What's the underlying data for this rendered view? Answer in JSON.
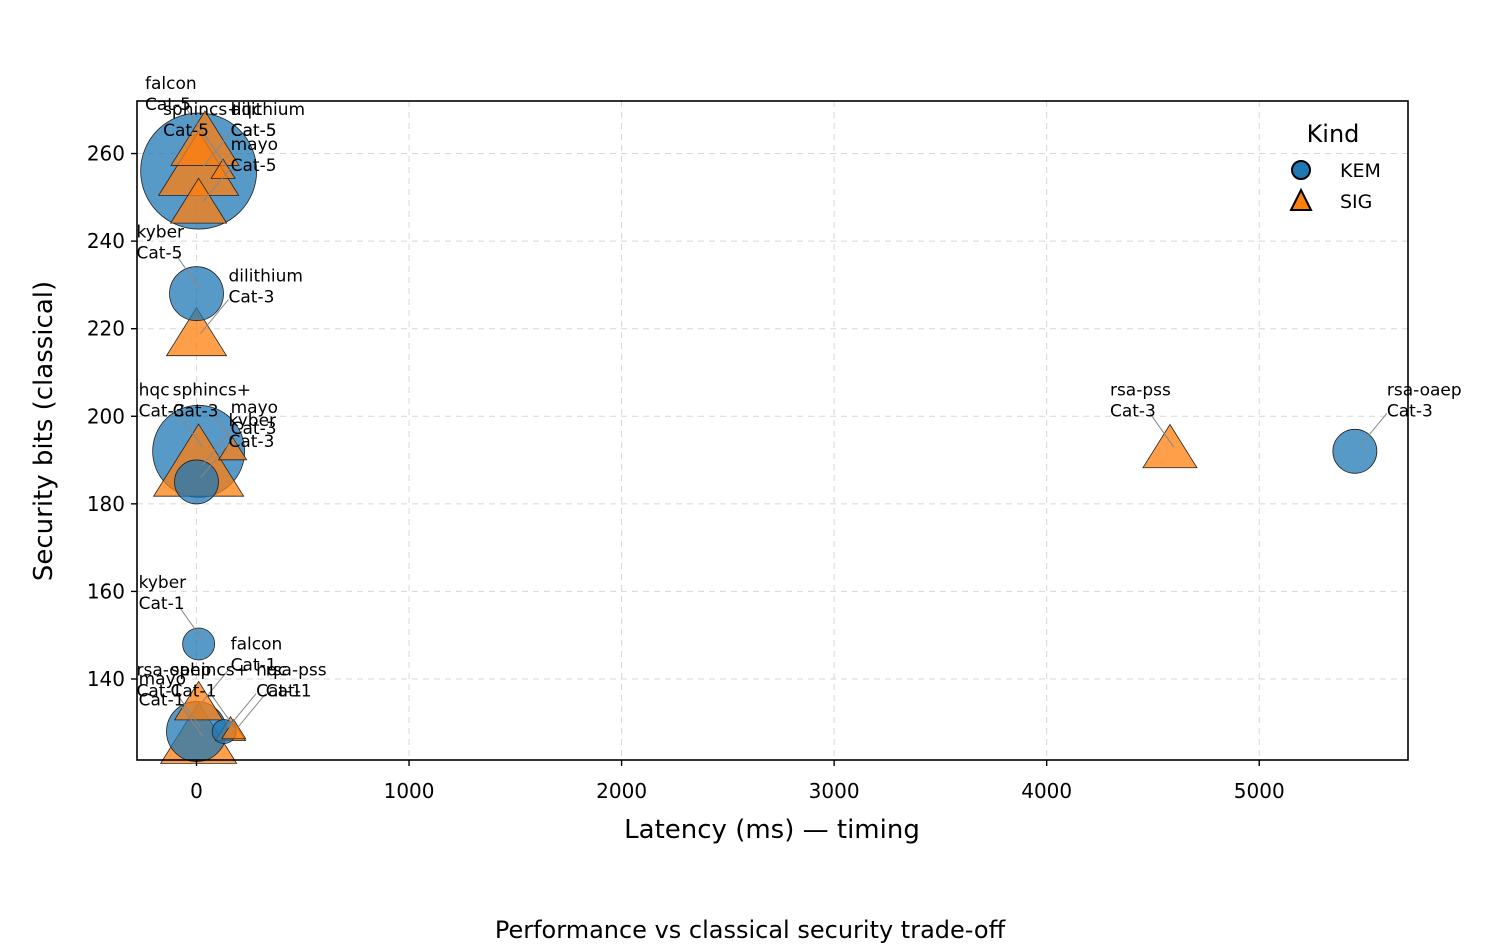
{
  "caption": "Performance vs classical security trade-off",
  "chart_data": {
    "type": "scatter",
    "title": "",
    "xlabel": "Latency (ms) — timing",
    "ylabel": "Security bits (classical)",
    "xlim": [
      -280,
      5700
    ],
    "ylim": [
      121.5,
      272
    ],
    "x_ticks": [
      0,
      1000,
      2000,
      3000,
      4000,
      5000
    ],
    "y_ticks": [
      140,
      160,
      180,
      200,
      220,
      240,
      260
    ],
    "grid": true,
    "legend": {
      "title": "Kind",
      "placement": "top-right",
      "entries": [
        "KEM",
        "SIG"
      ]
    },
    "colors": {
      "KEM": "#1f77b4",
      "SIG": "#ff7f0e"
    },
    "point_size_meaning": "not labeled",
    "points": [
      {
        "kind": "KEM",
        "name": "dilithium",
        "cat": "Cat-5",
        "x": 10,
        "y": 256,
        "size": 58
      },
      {
        "kind": "SIG",
        "name": "falcon",
        "cat": "Cat-5",
        "x": 40,
        "y": 262,
        "size": 34
      },
      {
        "kind": "SIG",
        "name": "hqc",
        "cat": "Cat-5",
        "x": 10,
        "y": 256,
        "size": 40
      },
      {
        "kind": "SIG",
        "name": "sphincs+",
        "cat": "Cat-5",
        "x": 125,
        "y": 256,
        "size": 12
      },
      {
        "kind": "SIG",
        "name": "mayo",
        "cat": "Cat-5",
        "x": 10,
        "y": 248,
        "size": 28
      },
      {
        "kind": "KEM",
        "name": "kyber",
        "cat": "Cat-5",
        "x": 0,
        "y": 228,
        "size": 27
      },
      {
        "kind": "SIG",
        "name": "dilithium",
        "cat": "Cat-3",
        "x": 0,
        "y": 218,
        "size": 30
      },
      {
        "kind": "KEM",
        "name": "hqc",
        "cat": "Cat-3",
        "x": 10,
        "y": 192,
        "size": 46
      },
      {
        "kind": "SIG",
        "name": "mayo",
        "cat": "Cat-3",
        "x": 10,
        "y": 188,
        "size": 45
      },
      {
        "kind": "SIG",
        "name": "sphincs+",
        "cat": "Cat-3",
        "x": 170,
        "y": 192,
        "size": 14
      },
      {
        "kind": "KEM",
        "name": "kyber",
        "cat": "Cat-3",
        "x": 0,
        "y": 185,
        "size": 22
      },
      {
        "kind": "SIG",
        "name": "rsa-pss",
        "cat": "Cat-3",
        "x": 4580,
        "y": 192,
        "size": 27
      },
      {
        "kind": "KEM",
        "name": "rsa-oaep",
        "cat": "Cat-3",
        "x": 5450,
        "y": 192,
        "size": 22
      },
      {
        "kind": "KEM",
        "name": "kyber",
        "cat": "Cat-1",
        "x": 10,
        "y": 148,
        "size": 16
      },
      {
        "kind": "SIG",
        "name": "falcon",
        "cat": "Cat-1",
        "x": 10,
        "y": 134,
        "size": 24
      },
      {
        "kind": "SIG",
        "name": "mayo",
        "cat": "Cat-1",
        "x": 10,
        "y": 126,
        "size": 38
      },
      {
        "kind": "KEM",
        "name": "hqc",
        "cat": "Cat-1",
        "x": 130,
        "y": 128,
        "size": 12
      },
      {
        "kind": "SIG",
        "name": "sphincs+",
        "cat": "Cat-1",
        "x": 160,
        "y": 128,
        "size": 15
      },
      {
        "kind": "SIG",
        "name": "rsa-pss",
        "cat": "Cat-1",
        "x": 175,
        "y": 128,
        "size": 12
      },
      {
        "kind": "KEM",
        "name": "rsa-oaep",
        "cat": "Cat-1",
        "x": 0,
        "y": 128,
        "size": 30
      }
    ]
  }
}
